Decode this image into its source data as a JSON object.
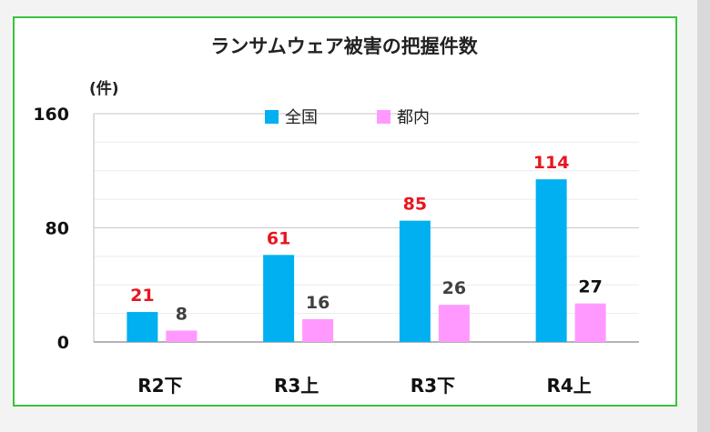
{
  "chart_data": {
    "type": "bar",
    "title": "ランサムウェア被害の把握件数",
    "unit_label": "(件)",
    "ylim": [
      0,
      160
    ],
    "yticks": [
      "0",
      "80",
      "160"
    ],
    "categories": [
      "R2下",
      "R3上",
      "R3下",
      "R4上"
    ],
    "series": [
      {
        "name": "全国",
        "values": [
          21,
          61,
          85,
          114
        ],
        "color": "#00b0f0",
        "label_color": "#e8161e"
      },
      {
        "name": "都内",
        "values": [
          8,
          16,
          26,
          27
        ],
        "color": "#ff99ff",
        "label_colors": [
          "#404040",
          "#404040",
          "#404040",
          "#111111"
        ]
      }
    ],
    "legend_position": "top",
    "grid": true
  }
}
